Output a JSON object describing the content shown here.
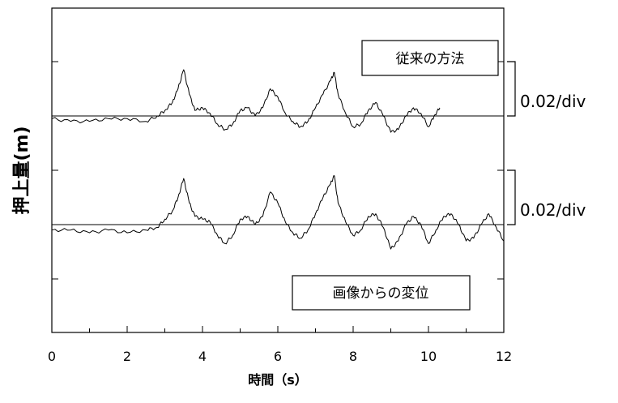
{
  "chart_data": {
    "type": "line",
    "xlabel": "時間（s）",
    "ylabel": "押上量(m)",
    "xlim": [
      0,
      12
    ],
    "xticks": [
      "0",
      "2",
      "4",
      "6",
      "8",
      "10",
      "12"
    ],
    "grid": false,
    "scale_label_upper": "0.02/div",
    "scale_label_lower": "0.02/div",
    "series": [
      {
        "name": "従来の方法",
        "color": "#000000",
        "baseline_offset_div": 1,
        "x": [
          0,
          0.5,
          1.0,
          1.5,
          2.0,
          2.5,
          2.8,
          3.0,
          3.2,
          3.35,
          3.5,
          3.65,
          3.8,
          4.0,
          4.2,
          4.4,
          4.6,
          4.8,
          5.0,
          5.2,
          5.4,
          5.6,
          5.8,
          6.0,
          6.2,
          6.4,
          6.6,
          6.8,
          7.0,
          7.2,
          7.4,
          7.5,
          7.6,
          7.8,
          8.0,
          8.2,
          8.4,
          8.6,
          8.8,
          9.0,
          9.2,
          9.4,
          9.6,
          9.8,
          10.0,
          10.15,
          10.3
        ],
        "y": [
          -0.001,
          -0.002,
          -0.002,
          -0.001,
          -0.001,
          -0.002,
          0.0,
          0.002,
          0.005,
          0.01,
          0.017,
          0.008,
          0.002,
          0.003,
          0.001,
          -0.003,
          -0.005,
          -0.003,
          0.002,
          0.003,
          0.0,
          0.003,
          0.01,
          0.007,
          0.001,
          -0.002,
          -0.004,
          -0.002,
          0.003,
          0.008,
          0.013,
          0.016,
          0.008,
          0.001,
          -0.004,
          -0.003,
          0.002,
          0.005,
          0.0,
          -0.006,
          -0.005,
          0.0,
          0.003,
          0.001,
          -0.004,
          0.0,
          0.003
        ]
      },
      {
        "name": "画像からの変位",
        "color": "#000000",
        "baseline_offset_div": -1,
        "x": [
          0,
          0.5,
          1.0,
          1.5,
          2.0,
          2.5,
          2.8,
          3.0,
          3.2,
          3.35,
          3.5,
          3.65,
          3.8,
          4.0,
          4.2,
          4.4,
          4.6,
          4.8,
          5.0,
          5.2,
          5.4,
          5.6,
          5.8,
          6.0,
          6.2,
          6.4,
          6.6,
          6.8,
          7.0,
          7.2,
          7.4,
          7.5,
          7.6,
          7.8,
          8.0,
          8.2,
          8.4,
          8.6,
          8.8,
          9.0,
          9.2,
          9.4,
          9.6,
          9.8,
          10.0,
          10.2,
          10.4,
          10.6,
          10.8,
          11.0,
          11.2,
          11.4,
          11.6,
          11.8,
          12.0
        ],
        "y": [
          -0.002,
          -0.002,
          -0.003,
          -0.002,
          -0.003,
          -0.002,
          -0.001,
          0.002,
          0.005,
          0.01,
          0.017,
          0.008,
          0.003,
          0.002,
          0.001,
          -0.004,
          -0.007,
          -0.004,
          0.002,
          0.003,
          0.0,
          0.003,
          0.012,
          0.008,
          0.001,
          -0.003,
          -0.005,
          -0.002,
          0.004,
          0.01,
          0.015,
          0.018,
          0.008,
          0.001,
          -0.004,
          -0.002,
          0.003,
          0.004,
          -0.001,
          -0.009,
          -0.006,
          0.0,
          0.003,
          0.0,
          -0.007,
          -0.002,
          0.003,
          0.004,
          0.0,
          -0.006,
          -0.005,
          0.0,
          0.004,
          -0.001,
          -0.006
        ]
      }
    ]
  }
}
